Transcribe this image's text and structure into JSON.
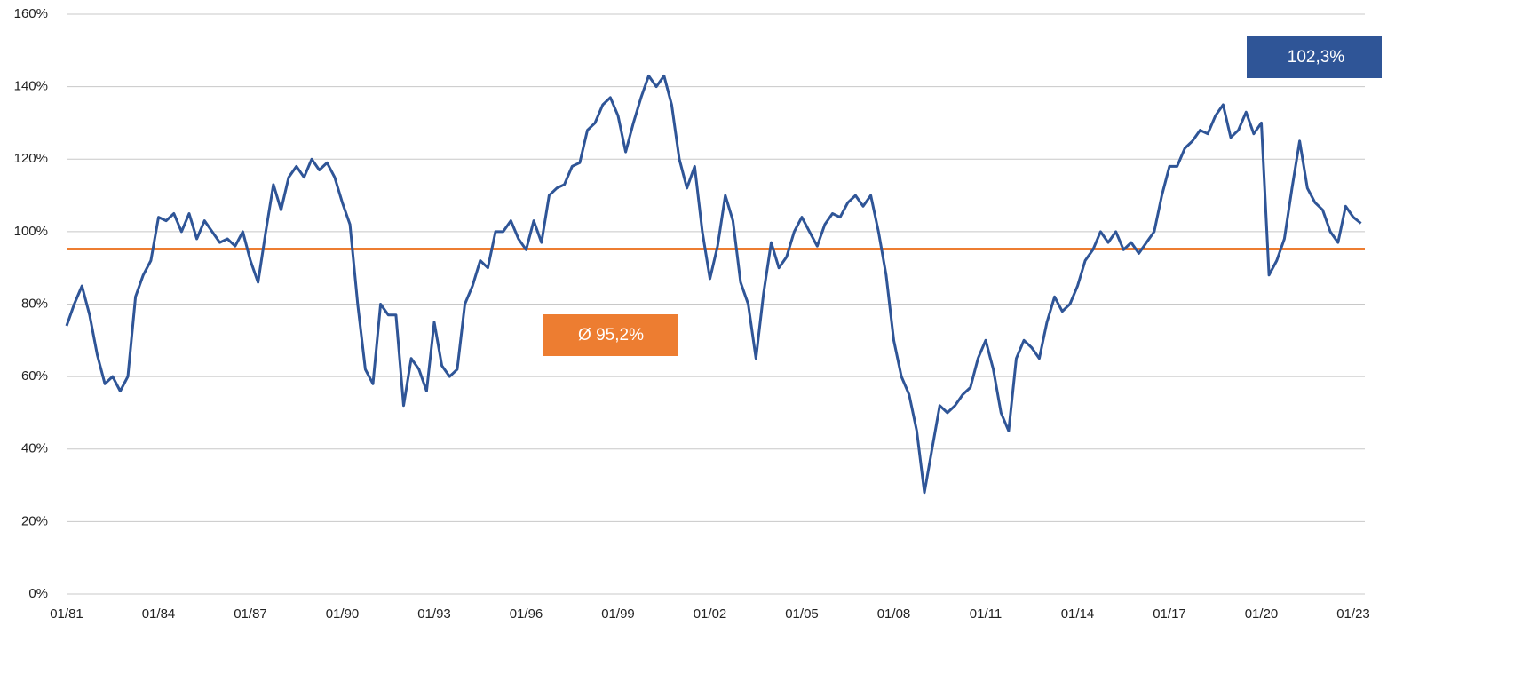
{
  "chart_data": {
    "type": "line",
    "categories": [
      "01/81",
      null,
      null,
      null,
      null,
      null,
      null,
      null,
      null,
      null,
      null,
      null,
      "01/84",
      null,
      null,
      null,
      null,
      null,
      null,
      null,
      null,
      null,
      null,
      null,
      "01/87",
      null,
      null,
      null,
      null,
      null,
      null,
      null,
      null,
      null,
      null,
      null,
      "01/90",
      null,
      null,
      null,
      null,
      null,
      null,
      null,
      null,
      null,
      null,
      null,
      "01/93",
      null,
      null,
      null,
      null,
      null,
      null,
      null,
      null,
      null,
      null,
      null,
      "01/96",
      null,
      null,
      null,
      null,
      null,
      null,
      null,
      null,
      null,
      null,
      null,
      "01/99",
      null,
      null,
      null,
      null,
      null,
      null,
      null,
      null,
      null,
      null,
      null,
      "01/02",
      null,
      null,
      null,
      null,
      null,
      null,
      null,
      null,
      null,
      null,
      null,
      "01/05",
      null,
      null,
      null,
      null,
      null,
      null,
      null,
      null,
      null,
      null,
      null,
      "01/08",
      null,
      null,
      null,
      null,
      null,
      null,
      null,
      null,
      null,
      null,
      null,
      "01/11",
      null,
      null,
      null,
      null,
      null,
      null,
      null,
      null,
      null,
      null,
      null,
      "01/14",
      null,
      null,
      null,
      null,
      null,
      null,
      null,
      null,
      null,
      null,
      null,
      "01/17",
      null,
      null,
      null,
      null,
      null,
      null,
      null,
      null,
      null,
      null,
      null,
      "01/20",
      null,
      null,
      null,
      null,
      null,
      null,
      null,
      null,
      null,
      null,
      null,
      "01/23",
      null
    ],
    "series": [
      {
        "color": "#2f5597",
        "values": [
          74,
          80,
          85,
          77,
          66,
          58,
          60,
          56,
          60,
          82,
          88,
          92,
          104,
          103,
          105,
          100,
          105,
          98,
          103,
          100,
          97,
          98,
          96,
          100,
          92,
          86,
          100,
          113,
          106,
          115,
          118,
          115,
          120,
          117,
          119,
          115,
          108,
          102,
          80,
          62,
          58,
          80,
          77,
          77,
          52,
          65,
          62,
          56,
          75,
          63,
          60,
          62,
          80,
          85,
          92,
          90,
          100,
          100,
          103,
          98,
          95,
          103,
          97,
          110,
          112,
          113,
          118,
          119,
          128,
          130,
          135,
          137,
          132,
          122,
          130,
          137,
          143,
          140,
          143,
          135,
          120,
          112,
          118,
          100,
          87,
          96,
          110,
          103,
          86,
          80,
          65,
          83,
          97,
          90,
          93,
          100,
          104,
          100,
          96,
          102,
          105,
          104,
          108,
          110,
          107,
          110,
          100,
          88,
          70,
          60,
          55,
          45,
          28,
          40,
          52,
          50,
          52,
          55,
          57,
          65,
          70,
          62,
          50,
          45,
          65,
          70,
          68,
          65,
          75,
          82,
          78,
          80,
          85,
          92,
          95,
          100,
          97,
          100,
          95,
          97,
          94,
          97,
          100,
          110,
          118,
          118,
          123,
          125,
          128,
          127,
          132,
          135,
          126,
          128,
          133,
          127,
          130,
          88,
          92,
          98,
          112,
          125,
          112,
          108,
          106,
          100,
          97,
          107,
          104,
          102.3
        ]
      }
    ],
    "ylim": [
      0,
      160
    ],
    "yticks": [
      {
        "value": 0,
        "label": "0%"
      },
      {
        "value": 20,
        "label": "20%"
      },
      {
        "value": 40,
        "label": "40%"
      },
      {
        "value": 60,
        "label": "60%"
      },
      {
        "value": 80,
        "label": "80%"
      },
      {
        "value": 100,
        "label": "100%"
      },
      {
        "value": 120,
        "label": "120%"
      },
      {
        "value": 140,
        "label": "140%"
      },
      {
        "value": 160,
        "label": "160%"
      }
    ],
    "grid": true,
    "average": {
      "value": 95.2,
      "label": "Ø 95,2%",
      "color": "#ed7d31"
    },
    "last_label": {
      "value": 102.3,
      "label": "102,3%",
      "color": "#2f5597"
    }
  }
}
